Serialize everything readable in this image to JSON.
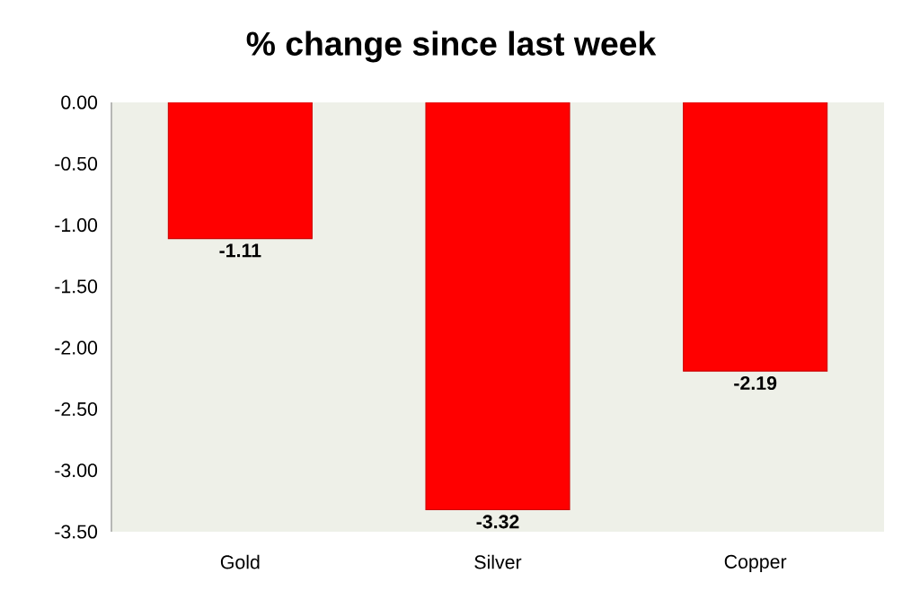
{
  "chart_data": {
    "type": "bar",
    "title": "% change since last week",
    "categories": [
      "Gold",
      "Silver",
      "Copper"
    ],
    "values": [
      -1.11,
      -3.32,
      -2.19
    ],
    "value_labels": [
      "-1.11",
      "-3.32",
      "-2.19"
    ],
    "color": "#ff0000",
    "ylim": [
      -3.5,
      0
    ],
    "yticks": [
      {
        "value": 0,
        "label": "0.00"
      },
      {
        "value": -0.5,
        "label": "-0.50"
      },
      {
        "value": -1,
        "label": "-1.00"
      },
      {
        "value": -1.5,
        "label": "-1.50"
      },
      {
        "value": -2,
        "label": "-2.00"
      },
      {
        "value": -2.5,
        "label": "-2.50"
      },
      {
        "value": -3,
        "label": "-3.00"
      },
      {
        "value": -3.5,
        "label": "-3.50"
      }
    ]
  }
}
